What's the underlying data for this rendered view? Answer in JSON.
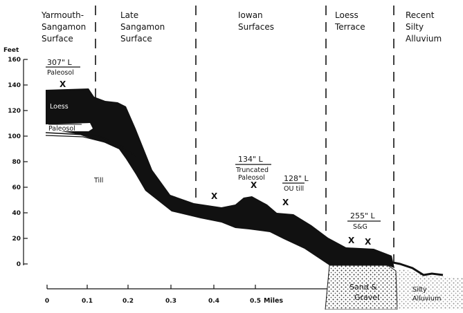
{
  "sections": [
    {
      "lines": [
        "Yarmouth-",
        "Sangamon",
        "Surface"
      ]
    },
    {
      "lines": [
        "Late",
        "Sangamon",
        "Surface"
      ]
    },
    {
      "lines": [
        "Iowan",
        "Surfaces"
      ]
    },
    {
      "lines": [
        "Loess",
        "Terrace"
      ]
    },
    {
      "lines": [
        "Recent",
        "Silty",
        "Alluvium"
      ]
    }
  ],
  "y_axis": {
    "unit": "Feet",
    "ticks": [
      "160",
      "140",
      "120",
      "100",
      "80",
      "60",
      "40",
      "20",
      "0"
    ]
  },
  "x_axis": {
    "ticks": [
      "0",
      "0.1",
      "0.2",
      "0.3",
      "0.4",
      "0.5"
    ],
    "unit": "Miles"
  },
  "layers": {
    "loess": "Loess",
    "paleosol_lower": "Paleosol",
    "till": "Till",
    "sand_gravel": [
      "Sand &",
      "Gravel"
    ],
    "silty_alluvium": [
      "Silty",
      "Alluvium"
    ]
  },
  "samples": [
    {
      "depth": "307\" L",
      "desc": [
        "Paleosol"
      ]
    },
    {
      "depth": "134\" L",
      "desc": [
        "Truncated",
        "Paleosol"
      ]
    },
    {
      "depth": "128\" L",
      "desc": [
        "OU till"
      ]
    },
    {
      "depth": "255\" L",
      "desc": [
        "S&G"
      ]
    }
  ],
  "sample_mark": "X",
  "colors": {
    "ink": "#111111",
    "paper": "#ffffff",
    "gravel": "#d8d8d8"
  }
}
